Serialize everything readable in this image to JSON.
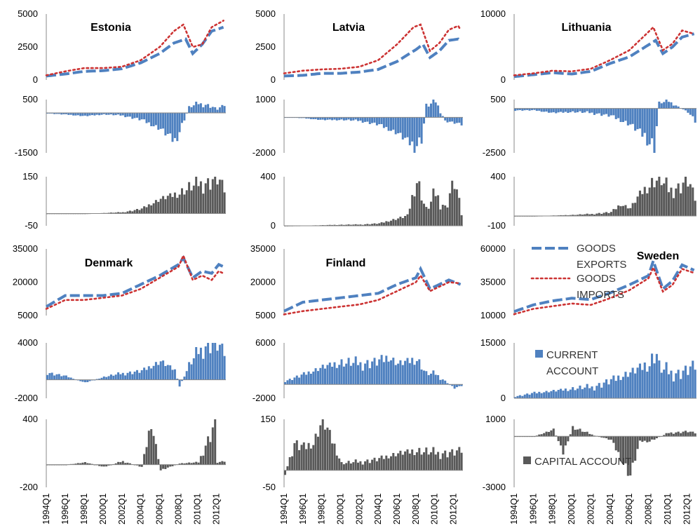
{
  "colors": {
    "exports": "#4f81c0",
    "imports": "#cc3333",
    "current": "#4f81c0",
    "capital": "#595959",
    "axis": "#888888"
  },
  "legend": {
    "exports": "GOODS EXPORTS",
    "imports": "GOODS IMPORTS",
    "current": "CURRENT ACCOUNT",
    "capital": "CAPITAL ACCOUNT"
  },
  "xticks": [
    "1994Q1",
    "1996Q1",
    "1998Q1",
    "2000Q1",
    "2002Q1",
    "2004Q1",
    "2006Q1",
    "2008Q1",
    "2010Q1",
    "2012Q1"
  ],
  "chart_data": [
    {
      "country": "Estonia",
      "type": "line",
      "ylim": [
        0,
        5000
      ],
      "yticks": [
        "5000",
        "2500",
        "0"
      ],
      "series": [
        {
          "name": "GOODS EXPORTS",
          "x": [
            1994,
            1996,
            1998,
            2000,
            2002,
            2004,
            2006,
            2007.5,
            2008.75,
            2009.5,
            2010.5,
            2011.5,
            2012.75
          ],
          "values": [
            300,
            450,
            650,
            700,
            850,
            1300,
            2000,
            2800,
            3100,
            2000,
            2700,
            3700,
            4000
          ]
        },
        {
          "name": "GOODS IMPORTS",
          "x": [
            1994,
            1996,
            1998,
            2000,
            2002,
            2004,
            2006,
            2007.5,
            2008.5,
            2009.5,
            2010.5,
            2011.5,
            2012.75
          ],
          "values": [
            350,
            650,
            900,
            900,
            1000,
            1500,
            2500,
            3700,
            4200,
            2500,
            2700,
            4000,
            4500
          ]
        }
      ]
    },
    {
      "country": "Latvia",
      "type": "line",
      "ylim": [
        0,
        5000
      ],
      "yticks": [
        "5000",
        "2500",
        "0"
      ],
      "series": [
        {
          "name": "GOODS EXPORTS",
          "x": [
            1994,
            1996,
            1998,
            2000,
            2002,
            2004,
            2006,
            2008,
            2008.75,
            2009.5,
            2010.5,
            2011.5,
            2012.5,
            2012.75
          ],
          "values": [
            300,
            350,
            500,
            500,
            600,
            800,
            1400,
            2300,
            2700,
            1700,
            2200,
            3000,
            3100,
            2900
          ]
        },
        {
          "name": "GOODS IMPORTS",
          "x": [
            1994,
            1996,
            1998,
            2000,
            2002,
            2004,
            2006,
            2007.75,
            2008.5,
            2009.5,
            2010.5,
            2011.5,
            2012.5,
            2012.75
          ],
          "values": [
            500,
            700,
            800,
            850,
            1000,
            1500,
            2700,
            4000,
            4200,
            2200,
            2800,
            3800,
            4100,
            3800
          ]
        }
      ]
    },
    {
      "country": "Lithuania",
      "type": "line",
      "ylim": [
        0,
        10000
      ],
      "yticks": [
        "10000",
        "",
        "0"
      ],
      "series": [
        {
          "name": "GOODS EXPORTS",
          "x": [
            1994,
            1996,
            1998,
            2000,
            2002,
            2004,
            2006,
            2008.75,
            2009.5,
            2010.5,
            2011.5,
            2012.75
          ],
          "values": [
            500,
            800,
            1100,
            900,
            1300,
            2500,
            3500,
            6000,
            4000,
            5000,
            6500,
            7000
          ]
        },
        {
          "name": "GOODS IMPORTS",
          "x": [
            1994,
            1996,
            1998,
            2000,
            2002,
            2004,
            2006,
            2008.5,
            2009.5,
            2010.5,
            2011.5,
            2012.75
          ],
          "values": [
            700,
            1000,
            1400,
            1300,
            1700,
            3000,
            4500,
            8000,
            4500,
            5500,
            7500,
            7000
          ]
        }
      ]
    },
    {
      "country": "Estonia",
      "type": "bar",
      "series_name": "CURRENT ACCOUNT",
      "ylim": [
        -1500,
        500
      ],
      "yticks": [
        "500",
        "",
        "-1500"
      ],
      "x": [
        1994,
        1996,
        1998,
        2000,
        2002,
        2004,
        2006,
        2007.5,
        2008,
        2009,
        2010,
        2011,
        2012,
        2012.75
      ],
      "values": [
        -20,
        -60,
        -120,
        -60,
        -100,
        -250,
        -600,
        -1100,
        -700,
        200,
        350,
        300,
        150,
        300
      ]
    },
    {
      "country": "Latvia",
      "type": "bar",
      "series_name": "CURRENT ACCOUNT",
      "ylim": [
        -2000,
        1000
      ],
      "yticks": [
        "1000",
        "",
        "-2000"
      ],
      "x": [
        1994,
        1996,
        1998,
        2000,
        2002,
        2004,
        2006,
        2007.75,
        2008.5,
        2009,
        2010,
        2011,
        2012,
        2012.75
      ],
      "values": [
        0,
        -50,
        -150,
        -150,
        -200,
        -400,
        -900,
        -1700,
        -1300,
        600,
        900,
        -200,
        -300,
        -400
      ]
    },
    {
      "country": "Lithuania",
      "type": "bar",
      "series_name": "CURRENT ACCOUNT",
      "ylim": [
        -2500,
        500
      ],
      "yticks": [
        "500",
        "",
        "-2500"
      ],
      "x": [
        1994,
        1996,
        1998,
        2000,
        2002,
        2004,
        2006,
        2007.5,
        2008.5,
        2009,
        2010,
        2011,
        2012,
        2012.75
      ],
      "values": [
        -100,
        -100,
        -250,
        -200,
        -250,
        -400,
        -900,
        -1600,
        -2300,
        300,
        400,
        100,
        -200,
        -700
      ]
    },
    {
      "country": "Estonia",
      "type": "bar",
      "series_name": "CAPITAL ACCOUNT",
      "ylim": [
        -50,
        150
      ],
      "yticks": [
        "150",
        "",
        "-50"
      ],
      "x": [
        1994,
        1996,
        1998,
        2000,
        2002,
        2004,
        2005,
        2006,
        2007,
        2008,
        2009,
        2010,
        2011,
        2012,
        2012.75
      ],
      "values": [
        0,
        0,
        0,
        2,
        5,
        20,
        40,
        60,
        70,
        80,
        100,
        120,
        130,
        150,
        100
      ]
    },
    {
      "country": "Latvia",
      "type": "bar",
      "series_name": "CAPITAL ACCOUNT",
      "ylim": [
        0,
        400
      ],
      "yticks": [
        "400",
        "",
        "0"
      ],
      "x": [
        1994,
        1996,
        1998,
        2000,
        2002,
        2004,
        2005,
        2006,
        2007,
        2008,
        2009,
        2010,
        2011,
        2012,
        2012.75
      ],
      "values": [
        0,
        2,
        5,
        8,
        10,
        20,
        40,
        60,
        80,
        360,
        120,
        260,
        150,
        380,
        100
      ]
    },
    {
      "country": "Lithuania",
      "type": "bar",
      "series_name": "CAPITAL ACCOUNT",
      "ylim": [
        -100,
        400
      ],
      "yticks": [
        "400",
        "",
        "-100"
      ],
      "x": [
        1994,
        1996,
        1998,
        2000,
        2002,
        2004,
        2005,
        2006,
        2007,
        2008,
        2009,
        2010,
        2011,
        2012,
        2012.75
      ],
      "values": [
        0,
        0,
        5,
        10,
        20,
        40,
        120,
        80,
        220,
        300,
        380,
        260,
        300,
        380,
        180
      ]
    },
    {
      "country": "Denmark",
      "type": "line",
      "ylim": [
        5000,
        35000
      ],
      "yticks": [
        "35000",
        "20000",
        "5000"
      ],
      "series": [
        {
          "name": "GOODS EXPORTS",
          "x": [
            1994,
            1996,
            1998,
            2000,
            2002,
            2004,
            2006,
            2008,
            2008.5,
            2009.5,
            2010.5,
            2011.5,
            2012.25,
            2012.75
          ],
          "values": [
            9000,
            14000,
            14000,
            14000,
            15000,
            19000,
            23000,
            28000,
            31000,
            22000,
            25000,
            24000,
            28000,
            27000
          ]
        },
        {
          "name": "GOODS IMPORTS",
          "x": [
            1994,
            1996,
            1998,
            2000,
            2002,
            2004,
            2006,
            2008,
            2008.5,
            2009.5,
            2010.5,
            2011.5,
            2012.25,
            2012.75
          ],
          "values": [
            8000,
            12000,
            12000,
            13000,
            14000,
            17000,
            22000,
            27000,
            32000,
            21000,
            23000,
            21000,
            25000,
            24000
          ]
        }
      ]
    },
    {
      "country": "Finland",
      "type": "line",
      "ylim": [
        5000,
        35000
      ],
      "yticks": [
        "35000",
        "20000",
        "5000"
      ],
      "series": [
        {
          "name": "GOODS EXPORTS",
          "x": [
            1994,
            1996,
            1998,
            2000,
            2002,
            2004,
            2006,
            2008,
            2008.5,
            2009.5,
            2010.5,
            2011.5,
            2012.75
          ],
          "values": [
            7000,
            11000,
            12000,
            13000,
            14000,
            15000,
            19000,
            22000,
            26000,
            17000,
            19000,
            21000,
            19000
          ]
        },
        {
          "name": "GOODS IMPORTS",
          "x": [
            1994,
            1996,
            1998,
            2000,
            2002,
            2004,
            2006,
            2008,
            2008.5,
            2009.5,
            2010.5,
            2011.5,
            2012.75
          ],
          "values": [
            5500,
            7000,
            8000,
            9000,
            10000,
            12000,
            16000,
            20000,
            23000,
            16000,
            18000,
            20000,
            19500
          ]
        }
      ]
    },
    {
      "country": "Sweden",
      "type": "line",
      "ylim": [
        10000,
        60000
      ],
      "yticks": [
        "60000",
        "35000",
        "10000"
      ],
      "series": [
        {
          "name": "GOODS EXPORTS",
          "x": [
            1994,
            1996,
            1998,
            2000,
            2002,
            2004,
            2006,
            2008,
            2008.5,
            2009.5,
            2010.5,
            2011.5,
            2012.75
          ],
          "values": [
            13000,
            18000,
            21000,
            23000,
            22000,
            27000,
            33000,
            40000,
            51000,
            30000,
            36000,
            48000,
            44000
          ]
        },
        {
          "name": "GOODS IMPORTS",
          "x": [
            1994,
            1996,
            1998,
            2000,
            2002,
            2004,
            2006,
            2008,
            2008.5,
            2009.5,
            2010.5,
            2011.5,
            2012.75
          ],
          "values": [
            11000,
            15000,
            17000,
            19000,
            18000,
            23000,
            29000,
            38000,
            46000,
            28000,
            33000,
            45000,
            42000
          ]
        }
      ]
    },
    {
      "country": "Denmark",
      "type": "bar",
      "series_name": "CURRENT ACCOUNT",
      "ylim": [
        -2000,
        4000
      ],
      "yticks": [
        "4000",
        "",
        "-2000"
      ],
      "x": [
        1994,
        1996,
        1998,
        2000,
        2002,
        2004,
        2006,
        2007.5,
        2008,
        2009,
        2010,
        2011,
        2012,
        2012.75
      ],
      "values": [
        800,
        400,
        -300,
        300,
        700,
        1000,
        2000,
        1000,
        -700,
        1500,
        3000,
        4000,
        4000,
        3000
      ]
    },
    {
      "country": "Finland",
      "type": "bar",
      "series_name": "CURRENT ACCOUNT",
      "ylim": [
        -2000,
        6000
      ],
      "yticks": [
        "6000",
        "",
        "-2000"
      ],
      "x": [
        1994,
        1996,
        1998,
        2000,
        2002,
        2004,
        2005,
        2006,
        2008,
        2009,
        2010,
        2011,
        2012,
        2012.75
      ],
      "values": [
        500,
        1500,
        2500,
        3000,
        3000,
        3500,
        4000,
        3000,
        3500,
        1500,
        1500,
        500,
        -500,
        -200
      ]
    },
    {
      "country": "Sweden",
      "type": "bar",
      "series_name": "CURRENT ACCOUNT",
      "ylim": [
        0,
        15000
      ],
      "yticks": [
        "15000",
        "",
        "0"
      ],
      "x": [
        1994,
        1996,
        1998,
        2000,
        2002,
        2004,
        2006,
        2008,
        2008.75,
        2009,
        2010,
        2011,
        2012,
        2012.75
      ],
      "values": [
        500,
        1500,
        2000,
        2500,
        3000,
        5000,
        7000,
        9000,
        12000,
        8000,
        7000,
        7000,
        8000,
        9000
      ]
    },
    {
      "country": "Denmark",
      "type": "bar",
      "series_name": "CAPITAL ACCOUNT",
      "ylim": [
        -200,
        400
      ],
      "yticks": [
        "400",
        "",
        "-200"
      ],
      "x": [
        1994,
        1996,
        1998,
        2000,
        2002,
        2004,
        2005,
        2006,
        2008,
        2010,
        2011.75,
        2012,
        2012.75
      ],
      "values": [
        0,
        0,
        20,
        -20,
        30,
        -20,
        380,
        -50,
        10,
        20,
        380,
        20,
        30
      ]
    },
    {
      "country": "Finland",
      "type": "bar",
      "series_name": "CAPITAL ACCOUNT",
      "ylim": [
        -50,
        150
      ],
      "yticks": [
        "150",
        "",
        "-50"
      ],
      "x": [
        1994,
        1995,
        1996,
        1997,
        1998,
        2000,
        2002,
        2004,
        2006,
        2008,
        2010,
        2012,
        2012.75
      ],
      "values": [
        -10,
        80,
        70,
        80,
        150,
        20,
        25,
        35,
        50,
        55,
        50,
        55,
        60
      ]
    },
    {
      "country": "Sweden",
      "type": "bar",
      "series_name": "CAPITAL ACCOUNT",
      "ylim": [
        -3000,
        1000
      ],
      "yticks": [
        "1000",
        "",
        "-3000"
      ],
      "x": [
        1994,
        1996,
        1998,
        1999,
        2000,
        2002,
        2004,
        2006,
        2007,
        2008,
        2010,
        2012,
        2012.75
      ],
      "values": [
        0,
        0,
        400,
        -1000,
        500,
        100,
        -200,
        -2300,
        -300,
        -300,
        200,
        300,
        200
      ]
    }
  ]
}
